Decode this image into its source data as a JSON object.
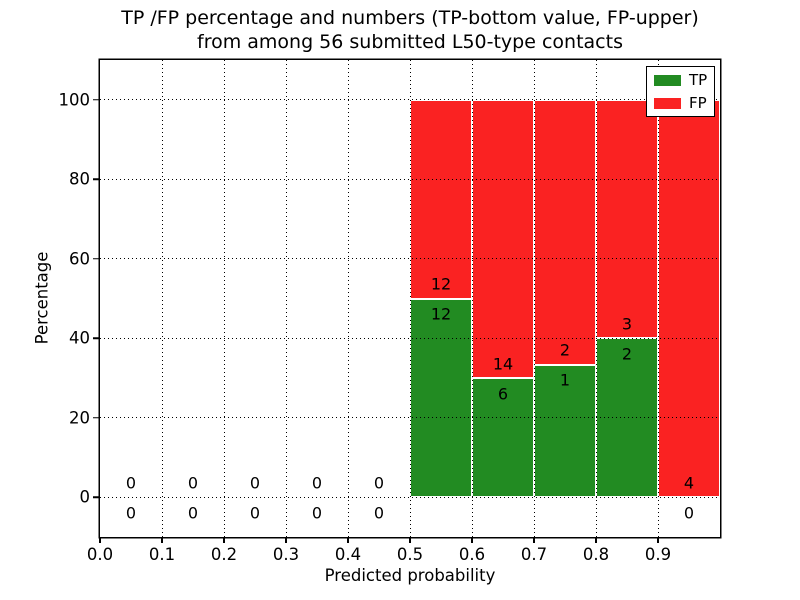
{
  "chart_data": {
    "type": "bar",
    "stacked": true,
    "title_line1": "TP /FP percentage and numbers (TP-bottom value, FP-upper)",
    "title_line2": "from among 56 submitted L50-type contacts",
    "xlabel": "Predicted probability",
    "ylabel": "Percentage",
    "xlim": [
      0.0,
      1.0
    ],
    "ylim": [
      -10,
      110
    ],
    "grid": true,
    "colors": {
      "tp": "#228b22",
      "fp": "#fa2222",
      "bar_edge": "#ffffff",
      "grid": "#000000",
      "text": "#000000"
    },
    "legend": {
      "position": "upper-right",
      "entries": [
        {
          "label": "TP",
          "color": "#228b22"
        },
        {
          "label": "FP",
          "color": "#fa2222"
        }
      ]
    },
    "xticks": [
      {
        "value": 0.0,
        "label": "0.0"
      },
      {
        "value": 0.1,
        "label": "0.1"
      },
      {
        "value": 0.2,
        "label": "0.2"
      },
      {
        "value": 0.3,
        "label": "0.3"
      },
      {
        "value": 0.4,
        "label": "0.4"
      },
      {
        "value": 0.5,
        "label": "0.5"
      },
      {
        "value": 0.6,
        "label": "0.6"
      },
      {
        "value": 0.7,
        "label": "0.7"
      },
      {
        "value": 0.8,
        "label": "0.8"
      },
      {
        "value": 0.9,
        "label": "0.9"
      }
    ],
    "yticks": [
      {
        "value": 0,
        "label": "0"
      },
      {
        "value": 20,
        "label": "20"
      },
      {
        "value": 40,
        "label": "40"
      },
      {
        "value": 60,
        "label": "60"
      },
      {
        "value": 80,
        "label": "80"
      },
      {
        "value": 100,
        "label": "100"
      }
    ],
    "bins": [
      {
        "range": [
          0.0,
          0.1
        ],
        "tp": 0,
        "fp": 0,
        "tp_pct": 0
      },
      {
        "range": [
          0.1,
          0.2
        ],
        "tp": 0,
        "fp": 0,
        "tp_pct": 0
      },
      {
        "range": [
          0.2,
          0.3
        ],
        "tp": 0,
        "fp": 0,
        "tp_pct": 0
      },
      {
        "range": [
          0.3,
          0.4
        ],
        "tp": 0,
        "fp": 0,
        "tp_pct": 0
      },
      {
        "range": [
          0.4,
          0.5
        ],
        "tp": 0,
        "fp": 0,
        "tp_pct": 0
      },
      {
        "range": [
          0.5,
          0.6
        ],
        "tp": 12,
        "fp": 12,
        "tp_pct": 50
      },
      {
        "range": [
          0.6,
          0.7
        ],
        "tp": 6,
        "fp": 14,
        "tp_pct": 30
      },
      {
        "range": [
          0.7,
          0.8
        ],
        "tp": 1,
        "fp": 2,
        "tp_pct": 33.333
      },
      {
        "range": [
          0.8,
          0.9
        ],
        "tp": 2,
        "fp": 3,
        "tp_pct": 40
      },
      {
        "range": [
          0.9,
          1.0
        ],
        "tp": 0,
        "fp": 4,
        "tp_pct": 0
      }
    ],
    "total_contacts": 56
  }
}
